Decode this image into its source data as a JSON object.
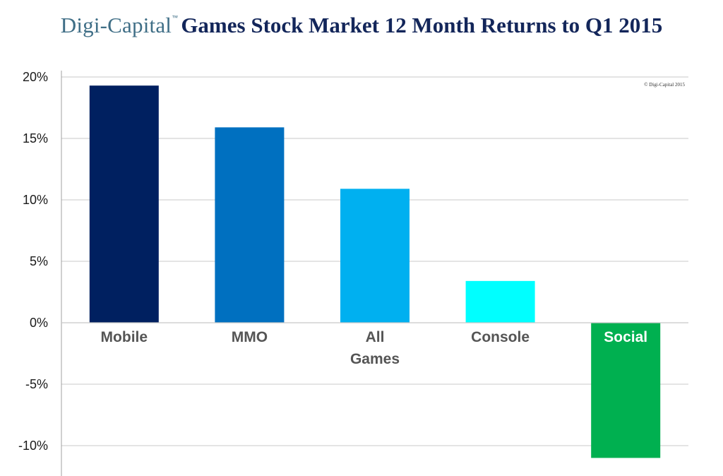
{
  "header": {
    "brand": "Digi-Capital",
    "trademark": "™"
  },
  "chart_data": {
    "type": "bar",
    "title": "Games Stock Market 12 Month Returns to Q1 2015",
    "categories": [
      "Mobile",
      "MMO",
      "All Games",
      "Console",
      "Social"
    ],
    "category_lines": [
      [
        "Mobile"
      ],
      [
        "MMO"
      ],
      [
        "All",
        "Games"
      ],
      [
        "Console"
      ],
      [
        "Social"
      ]
    ],
    "values": [
      19.3,
      15.9,
      10.9,
      3.4,
      -11.0
    ],
    "colors": [
      "#002060",
      "#0070c0",
      "#00b0f0",
      "#00ffff",
      "#00b050"
    ],
    "ylim": [
      -12,
      20
    ],
    "yticks": [
      20,
      15,
      10,
      5,
      0,
      -5,
      -10
    ],
    "ytick_labels": [
      "20%",
      "15%",
      "10%",
      "5%",
      "0%",
      "-5%",
      "-10%"
    ],
    "xlabel": "",
    "ylabel": "",
    "grid": true,
    "legend": "none",
    "annotation": "© Digi-Capital 2015"
  },
  "colors": {
    "grid": "#c8c8c8",
    "axis": "#a0a0a0"
  }
}
